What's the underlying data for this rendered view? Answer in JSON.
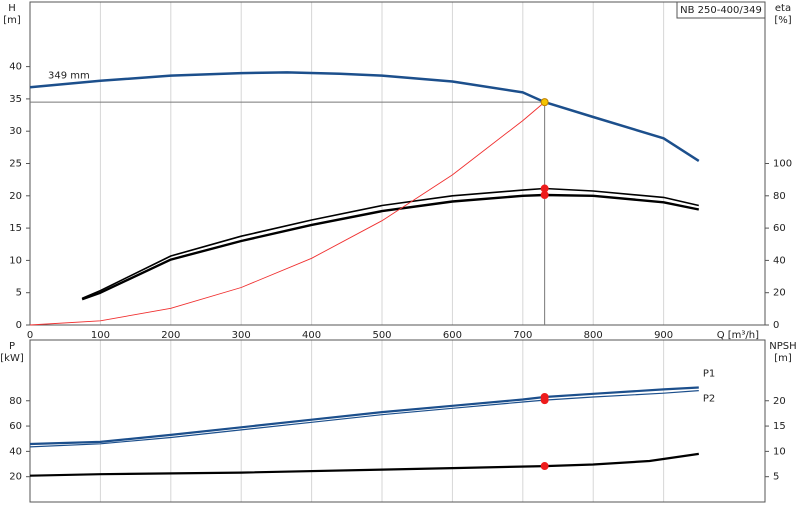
{
  "chart_data": [
    {
      "type": "line",
      "model": "NB 250-400/349",
      "y_label": [
        "H",
        "[m]"
      ],
      "y2_label": [
        "eta",
        "[%]"
      ],
      "x_label": "Q [m³/h]",
      "xlim": [
        0,
        1044
      ],
      "xticks": [
        0,
        100,
        200,
        300,
        400,
        500,
        600,
        700,
        800,
        900
      ],
      "ylim": [
        0,
        50
      ],
      "yticks": [
        0,
        5,
        10,
        15,
        20,
        25,
        30,
        35,
        40
      ],
      "y2lim": [
        0,
        200
      ],
      "y2ticks": [
        0,
        20,
        40,
        60,
        80,
        100
      ],
      "grid": "x",
      "duty_x": 731,
      "series": [
        {
          "name": "349 mm",
          "color": "#1c4f8c",
          "width": 2.5,
          "duty_marker": "#f5c400",
          "duty_lines": true,
          "x": [
            0,
            100,
            200,
            300,
            365,
            440,
            500,
            600,
            700,
            731,
            800,
            900,
            950
          ],
          "values": [
            36.8,
            37.8,
            38.6,
            39.0,
            39.1,
            38.9,
            38.6,
            37.7,
            36.0,
            34.5,
            32.2,
            28.9,
            25.4
          ]
        },
        {
          "color": "#000000",
          "width": 1.6,
          "axis": "y2",
          "duty_marker": "#ee1c1c",
          "x": [
            74,
            100,
            200,
            300,
            400,
            500,
            600,
            700,
            731,
            800,
            900,
            950
          ],
          "values": [
            16.5,
            21.3,
            42.7,
            55,
            65,
            74,
            80,
            83.5,
            84.5,
            83,
            79,
            74
          ]
        },
        {
          "color": "#000000",
          "width": 2.4,
          "axis": "y2",
          "duty_marker": "#ee1c1c",
          "x": [
            74,
            100,
            200,
            300,
            400,
            500,
            600,
            700,
            731,
            800,
            900,
            950
          ],
          "values": [
            16,
            20,
            40.5,
            52,
            62,
            70.5,
            76.5,
            80,
            80.5,
            80,
            76,
            71.5
          ]
        },
        {
          "color": "#f03030",
          "width": 0.9,
          "x": [
            0,
            100,
            200,
            300,
            400,
            500,
            600,
            700,
            731
          ],
          "values": [
            0,
            0.65,
            2.58,
            5.81,
            10.33,
            16.14,
            23.24,
            31.64,
            34.5
          ]
        }
      ]
    },
    {
      "type": "line",
      "y_label": [
        "P",
        "[kW]"
      ],
      "y2_label": [
        "NPSH",
        "[m]"
      ],
      "xlim": [
        0,
        1044
      ],
      "xticks": [
        0,
        100,
        200,
        300,
        400,
        500,
        600,
        700,
        800,
        900
      ],
      "ylim": [
        0,
        128
      ],
      "yticks": [
        20,
        40,
        60,
        80
      ],
      "y2lim": [
        0,
        32
      ],
      "y2ticks": [
        5,
        10,
        15,
        20
      ],
      "grid": "x",
      "duty_x": 731,
      "series": [
        {
          "name": "P1",
          "color": "#1c4f8c",
          "width": 2.2,
          "duty_marker": "#ee1c1c",
          "x": [
            0,
            100,
            200,
            300,
            400,
            500,
            600,
            700,
            731,
            800,
            900,
            950
          ],
          "values": [
            45.8,
            47.5,
            53,
            59,
            65,
            71,
            76,
            81,
            83,
            85.5,
            89,
            90.5
          ]
        },
        {
          "name": "P2",
          "color": "#1c4f8c",
          "width": 1.2,
          "duty_marker": "#ee1c1c",
          "x": [
            0,
            100,
            200,
            300,
            400,
            500,
            600,
            700,
            731,
            800,
            900,
            950
          ],
          "values": [
            43.5,
            46,
            51,
            57,
            63,
            69,
            74,
            79,
            80.5,
            83,
            86,
            88
          ]
        },
        {
          "color": "#000000",
          "width": 2.2,
          "axis": "y2",
          "duty_marker": "#ee1c1c",
          "x": [
            0,
            100,
            300,
            500,
            600,
            731,
            800,
            880,
            950
          ],
          "values": [
            5.2,
            5.5,
            5.8,
            6.4,
            6.7,
            7.1,
            7.4,
            8.1,
            9.5
          ]
        }
      ]
    }
  ]
}
